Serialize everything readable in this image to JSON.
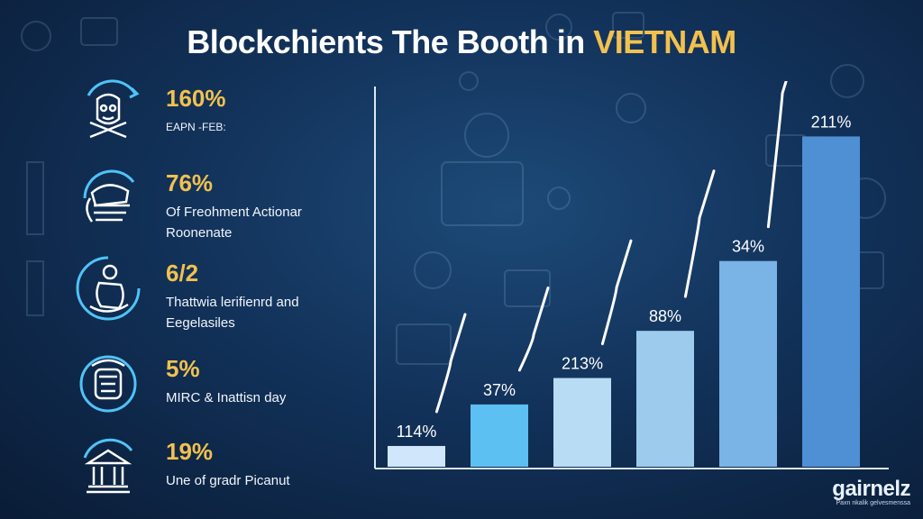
{
  "title": {
    "main": "Blockchients The Booth in",
    "accent": "VIETNAM"
  },
  "stats": [
    {
      "value": "160%",
      "line1": "EAPN -FEB:",
      "line2": "",
      "icon": "face-icon"
    },
    {
      "value": "76%",
      "line1": "Of Freohment Actionar",
      "line2": "Roonenate",
      "icon": "hand-icon"
    },
    {
      "value": "6/2",
      "line1": "Thattwia lerifienrd and",
      "line2": "Eegelasiles",
      "icon": "head-icon"
    },
    {
      "value": "5%",
      "line1": "MIRC & Inattisn day",
      "line2": "",
      "icon": "badge-icon"
    },
    {
      "value": "19%",
      "line1": "Une of gradr Picanut",
      "line2": "",
      "icon": "bank-icon"
    }
  ],
  "logo": {
    "name": "gairnelz",
    "tagline": "Paxn nkalik gelvesmenssa"
  },
  "colors": {
    "accent": "#f2c14e",
    "bar_colors": [
      "#cfe6fb",
      "#5cc0f2",
      "#b9dcf5",
      "#9ccbee",
      "#7ab3e6",
      "#4f8fd4"
    ]
  },
  "chart_data": {
    "type": "bar",
    "categories": [
      "",
      "",
      "",
      "",
      "",
      ""
    ],
    "values": [
      11,
      33,
      47,
      72,
      109,
      175
    ],
    "data_labels": [
      "114%",
      "37%",
      "213%",
      "88%",
      "34%",
      "211%"
    ],
    "title": "",
    "xlabel": "",
    "ylabel": "",
    "ylim": [
      0,
      190
    ],
    "grid": false,
    "legend": "none",
    "trend_line": true
  }
}
